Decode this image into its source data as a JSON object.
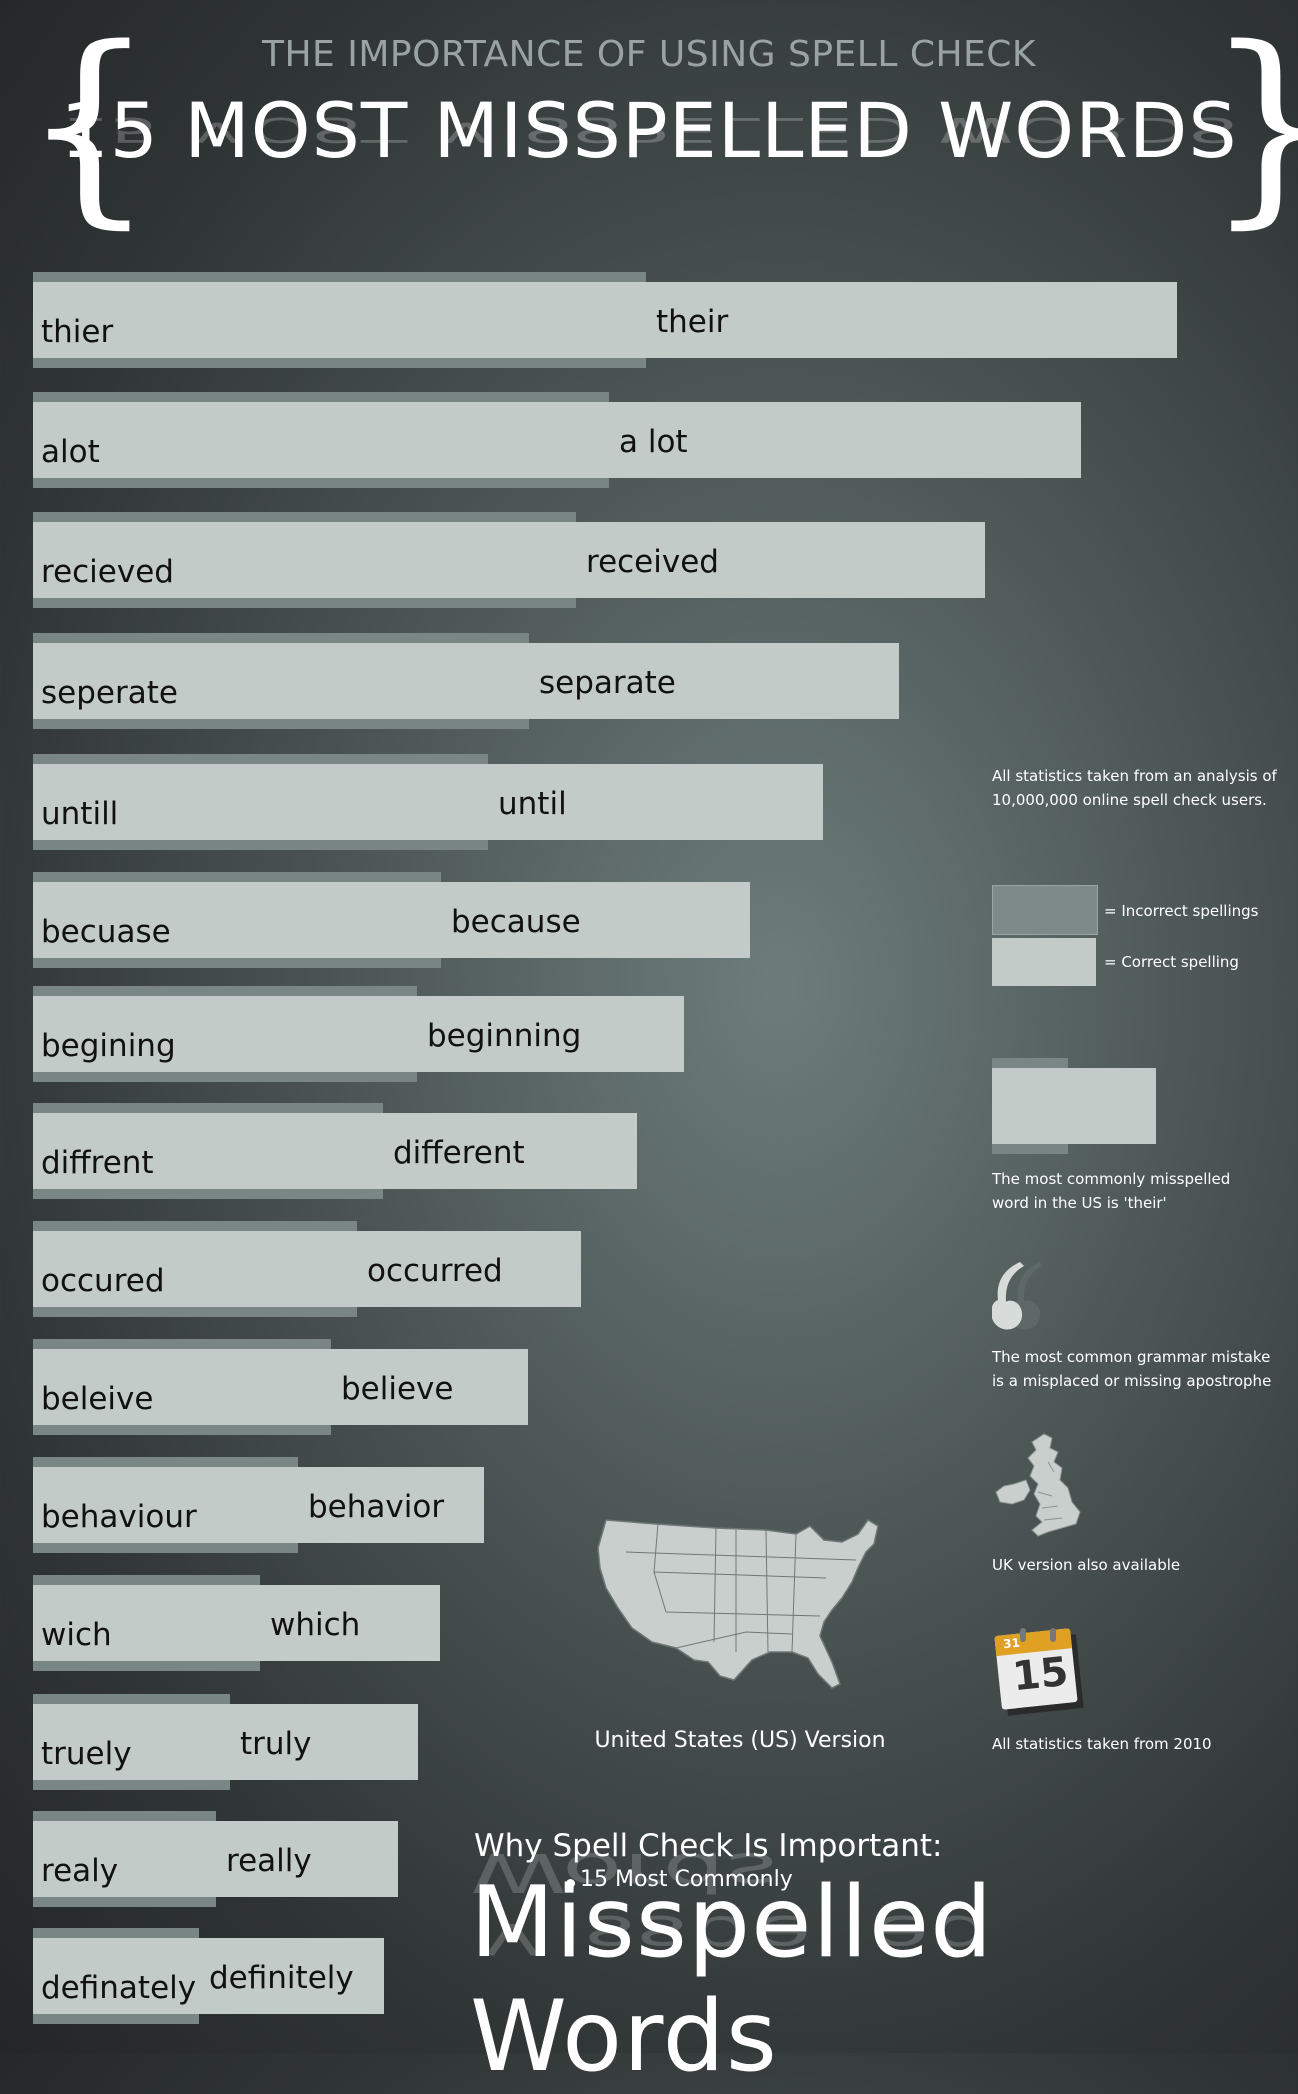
{
  "header": {
    "kicker": "THE IMPORTANCE OF USING SPELL CHECK",
    "title": "15 MOST MISSPELLED WORDS",
    "brace_left": "{",
    "brace_right": "}"
  },
  "words": [
    {
      "incorrect": "thier",
      "correct": "their"
    },
    {
      "incorrect": "alot",
      "correct": "a lot"
    },
    {
      "incorrect": "recieved",
      "correct": "received"
    },
    {
      "incorrect": "seperate",
      "correct": "separate"
    },
    {
      "incorrect": "untill",
      "correct": "until"
    },
    {
      "incorrect": "becuase",
      "correct": "because"
    },
    {
      "incorrect": "begining",
      "correct": "beginning"
    },
    {
      "incorrect": "diffrent",
      "correct": "different"
    },
    {
      "incorrect": "occured",
      "correct": "occurred"
    },
    {
      "incorrect": "beleive",
      "correct": "believe"
    },
    {
      "incorrect": "behaviour",
      "correct": "behavior"
    },
    {
      "incorrect": "wich",
      "correct": "which"
    },
    {
      "incorrect": "truely",
      "correct": "truly"
    },
    {
      "incorrect": "realy",
      "correct": "really"
    },
    {
      "incorrect": "definately",
      "correct": "definitely"
    }
  ],
  "sidebar": {
    "stats_note": "All statistics taken from an analysis of 10,000,000 online spell check users.",
    "legend_incorrect": "= Incorrect spellings",
    "legend_correct": "= Correct spelling",
    "most_common_note": "The most commonly misspelled word in the US is 'their'",
    "grammar_note": "The most common grammar mistake is a misplaced or missing apostrophe",
    "uk_note": "UK version also available",
    "year_note": "All statistics taken from 2010",
    "calendar_number": "15",
    "calendar_top": "31"
  },
  "map": {
    "caption": "United States (US) Version"
  },
  "footer": {
    "kicker": "Why Spell Check Is Important:",
    "subtitle": "15 Most Commonly",
    "title": "Misspelled Words"
  },
  "colors": {
    "bar_light": "#c2cbc7",
    "bar_dark": "#7a8684",
    "background": "#3f4746"
  }
}
